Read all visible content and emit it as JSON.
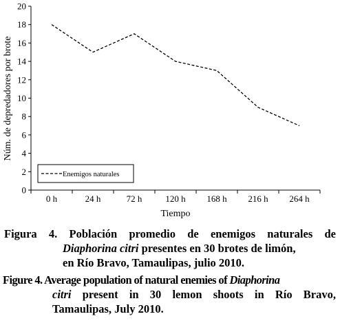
{
  "chart_data": {
    "type": "line",
    "categories": [
      "0 h",
      "24 h",
      "72 h",
      "120 h",
      "168 h",
      "216 h",
      "264 h"
    ],
    "series": [
      {
        "name": "Enemigos naturales",
        "values": [
          18,
          15,
          17,
          14,
          13,
          9,
          7
        ],
        "style": "dashed"
      }
    ],
    "xlabel": "Tiempo",
    "ylabel": "Núm. de depredadores por brote",
    "ylim": [
      0,
      20
    ],
    "yticks": [
      0,
      2,
      4,
      6,
      8,
      10,
      12,
      14,
      16,
      18,
      20
    ],
    "legend": {
      "position": "bottom-left"
    },
    "grid": false
  },
  "caption_es": {
    "label": "Figura 4.",
    "line1_rest": "Población promedio de enemigos naturales de",
    "line2_italic": "Diaphorina citri",
    "line2_rest": " presentes en 30 brotes de limón,",
    "line3": "en Río Bravo, Tamaulipas, julio 2010."
  },
  "caption_en": {
    "label": "Figure 4.",
    "line1_rest": "Average population of natural enemies of ",
    "line1_italic": "Diaphorina",
    "line2_italic": "citri",
    "line2_rest": " present in 30 lemon shoots in Río Bravo,",
    "line3": "Tamaulipas, July 2010."
  }
}
